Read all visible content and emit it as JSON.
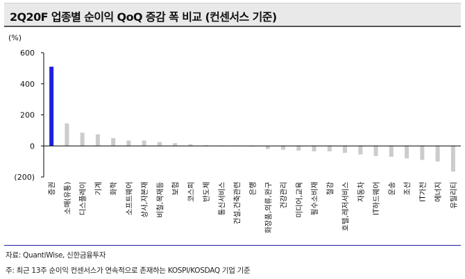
{
  "title": "2Q20F 업종별 순이익 QoQ 증감 폭 비교 (컨센서스 기준)",
  "source": "자료: QuantiWise, 신한금융투자",
  "note": "주: 최근 13주 순이익 컨센서스가 연속적으로 존재하는 KOSPI/KOSDAQ 기업 기준",
  "colors": {
    "highlight": "#1f1fe0",
    "bar": "#cccccc",
    "axis": "#000000"
  },
  "chart_data": {
    "type": "bar",
    "unit": "(%)",
    "ylim": [
      -200,
      600
    ],
    "yticks": [
      600,
      400,
      200,
      0,
      -200
    ],
    "ytick_labels": [
      "600",
      "400",
      "200",
      "0",
      "(200)"
    ],
    "grid": false,
    "categories": [
      "증권",
      "소매(유통)",
      "디스플레이",
      "기계",
      "화학",
      "소프트웨어",
      "상사,자본재",
      "비철,목재등",
      "보험",
      "코스피",
      "반도체",
      "통신서비스",
      "건설,건축관련",
      "은행",
      "화장품,의류,완구",
      "건강관리",
      "미디어,교육",
      "필수소비재",
      "철강",
      "호텔,레저서비스",
      "자동차",
      "IT하드웨어",
      "운송",
      "조선",
      "IT가전",
      "에너지",
      "유틸리티"
    ],
    "values": [
      510,
      145,
      85,
      75,
      50,
      35,
      35,
      25,
      18,
      10,
      5,
      3,
      0,
      -3,
      -20,
      -25,
      -30,
      -35,
      -35,
      -45,
      -55,
      -65,
      -70,
      -80,
      -90,
      -100,
      -165
    ],
    "highlight_index": 0
  }
}
